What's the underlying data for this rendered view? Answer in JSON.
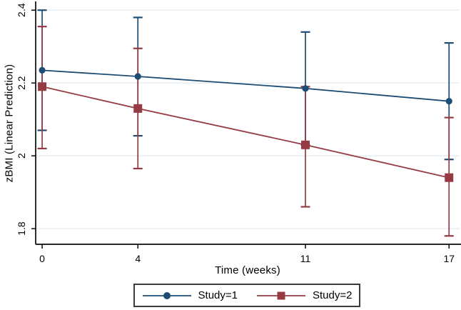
{
  "chart_data": {
    "type": "line",
    "title": "",
    "xlabel": "Time (weeks)",
    "ylabel": "zBMI (Linear Prediction)",
    "x": [
      0,
      4,
      11,
      17
    ],
    "xtick_labels": [
      "0",
      "4",
      "11",
      "17"
    ],
    "yticks": [
      1.8,
      2.0,
      2.2,
      2.4
    ],
    "ytick_labels": [
      "1.8",
      "2",
      "2.2",
      "2.4"
    ],
    "xlim": [
      -0.27,
      17.5
    ],
    "ylim": [
      1.757,
      2.424
    ],
    "grid": "horizontal-only",
    "legend_position": "bottom-center",
    "error_bars": "95% CI caps",
    "series": [
      {
        "name": "Study=1",
        "marker": "circle",
        "color": "#1d4d74",
        "values": [
          2.235,
          2.218,
          2.185,
          2.15
        ],
        "ci_low": [
          2.07,
          2.055,
          2.03,
          1.99
        ],
        "ci_high": [
          2.4,
          2.38,
          2.34,
          2.31
        ]
      },
      {
        "name": "Study=2",
        "marker": "square",
        "color": "#963b43",
        "values": [
          2.19,
          2.13,
          2.03,
          1.94
        ],
        "ci_low": [
          2.02,
          1.965,
          1.86,
          1.78
        ],
        "ci_high": [
          2.355,
          2.295,
          2.19,
          2.105
        ]
      }
    ]
  },
  "style": {
    "grid_color": "#e4edf3",
    "axis_color": "#0a0a0a",
    "text_color": "#000000"
  }
}
